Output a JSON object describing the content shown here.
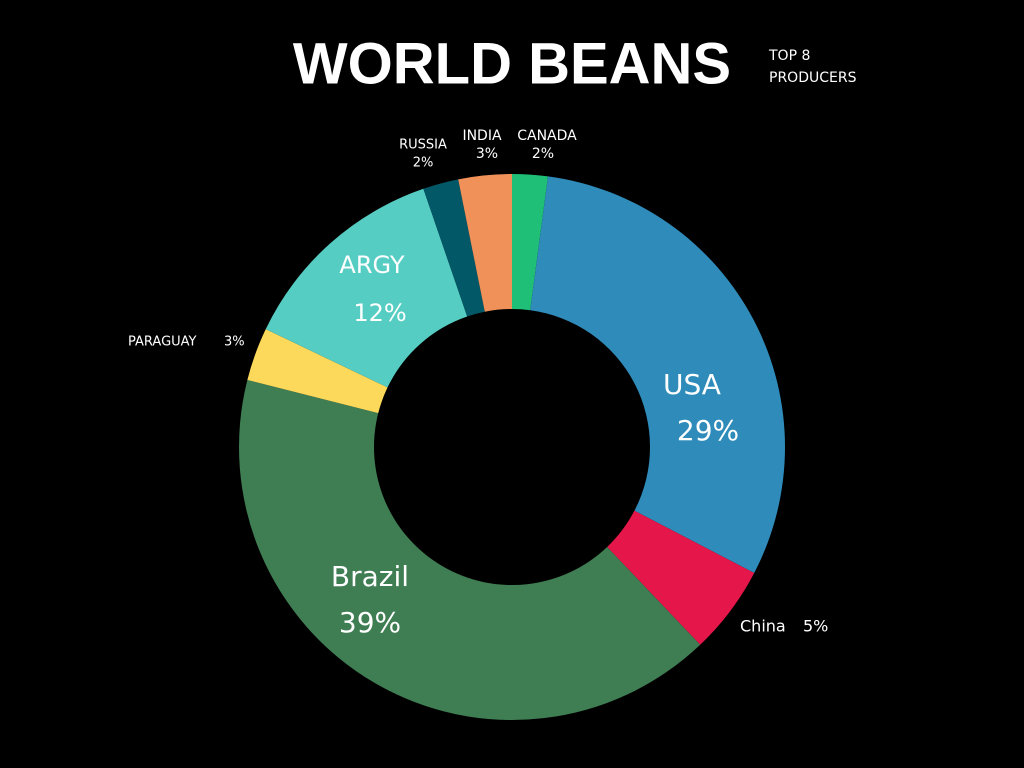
{
  "chart_data": {
    "type": "donut",
    "title": "WORLD BEANS",
    "subtitle": [
      "TOP 8",
      "PRODUCERS"
    ],
    "categories": [
      "CANADA",
      "USA",
      "China",
      "Brazil",
      "PARAGUAY",
      "ARGY",
      "RUSSIA",
      "INDIA"
    ],
    "values": [
      2,
      29,
      5,
      39,
      3,
      12,
      2,
      3
    ],
    "value_labels": [
      "2%",
      "29%",
      "5%",
      "39%",
      "3%",
      "12%",
      "2%",
      "3%"
    ],
    "colors": [
      "#1fbf77",
      "#2e8bba",
      "#e5164a",
      "#3f7d53",
      "#fcd95b",
      "#56cdc3",
      "#035868",
      "#f0915a"
    ]
  }
}
